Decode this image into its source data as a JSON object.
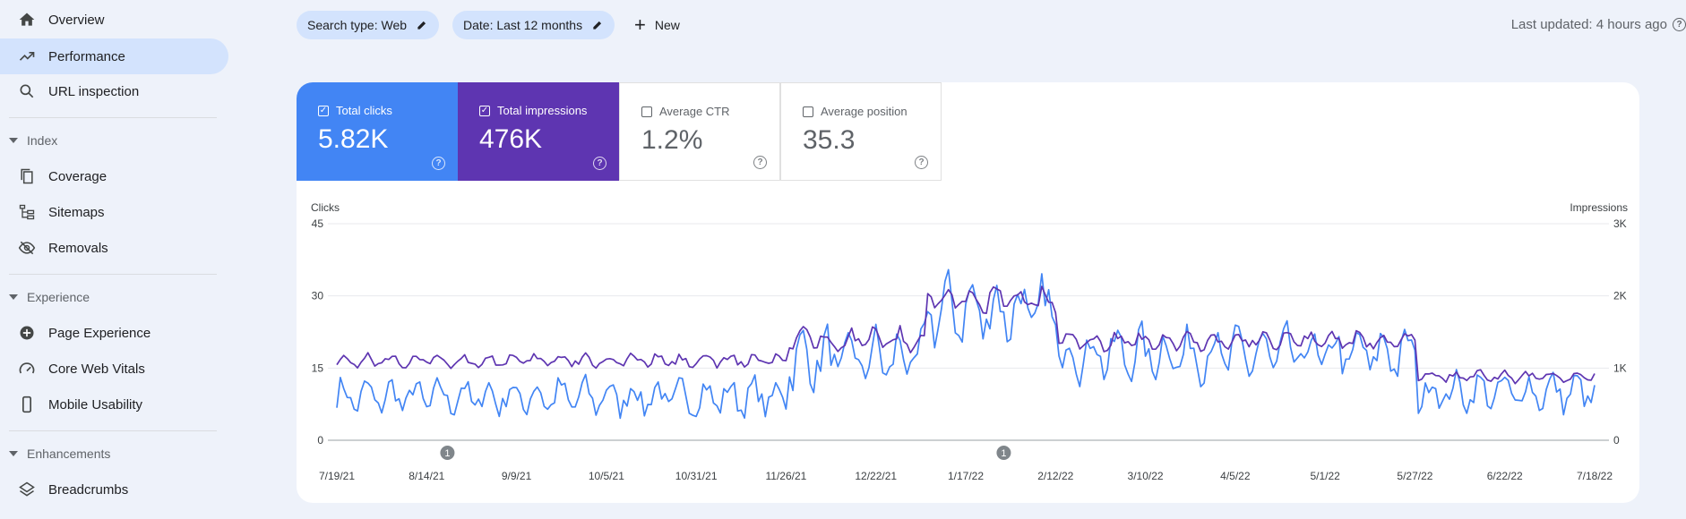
{
  "sidebar": {
    "items": [
      {
        "label": "Overview",
        "icon": "home-icon"
      },
      {
        "label": "Performance",
        "icon": "trending-up-icon",
        "active": true
      },
      {
        "label": "URL inspection",
        "icon": "search-icon"
      }
    ],
    "sections": [
      {
        "title": "Index",
        "items": [
          {
            "label": "Coverage",
            "icon": "file-copy-icon"
          },
          {
            "label": "Sitemaps",
            "icon": "sitemap-icon"
          },
          {
            "label": "Removals",
            "icon": "eye-off-icon"
          }
        ]
      },
      {
        "title": "Experience",
        "items": [
          {
            "label": "Page Experience",
            "icon": "plus-circle-icon"
          },
          {
            "label": "Core Web Vitals",
            "icon": "speed-icon"
          },
          {
            "label": "Mobile Usability",
            "icon": "phone-icon"
          }
        ]
      },
      {
        "title": "Enhancements",
        "items": [
          {
            "label": "Breadcrumbs",
            "icon": "layers-icon"
          }
        ]
      }
    ]
  },
  "toolbar": {
    "chips": [
      "Search type: Web",
      "Date: Last 12 months"
    ],
    "new_label": "New",
    "last_updated": "Last updated: 4 hours ago"
  },
  "metrics": {
    "clicks": {
      "label": "Total clicks",
      "value": "5.82K",
      "checked": true
    },
    "impressions": {
      "label": "Total impressions",
      "value": "476K",
      "checked": true
    },
    "ctr": {
      "label": "Average CTR",
      "value": "1.2%",
      "checked": false
    },
    "position": {
      "label": "Average position",
      "value": "35.3",
      "checked": false
    }
  },
  "colors": {
    "clicks": "#4285f4",
    "impressions": "#5e35b1",
    "active_nav": "#d3e3fd"
  },
  "chart_data": {
    "type": "line",
    "left_axis_label": "Clicks",
    "right_axis_label": "Impressions",
    "left_ticks": [
      "45",
      "30",
      "15",
      "0"
    ],
    "right_ticks": [
      "3K",
      "2K",
      "1K",
      "0"
    ],
    "left_ylim": [
      0,
      45
    ],
    "right_ylim": [
      0,
      3000
    ],
    "x_tick_labels": [
      "7/19/21",
      "8/14/21",
      "9/9/21",
      "10/5/21",
      "10/31/21",
      "11/26/21",
      "12/22/21",
      "1/17/22",
      "2/12/22",
      "3/10/22",
      "4/5/22",
      "5/1/22",
      "5/27/22",
      "6/22/22",
      "7/18/22"
    ],
    "annotations": [
      {
        "label": "1",
        "date": "8/20/21"
      },
      {
        "label": "1",
        "date": "1/28/22"
      }
    ],
    "series": [
      {
        "name": "Total clicks",
        "axis": "left",
        "color": "#4285f4",
        "segments": [
          {
            "from": "7/19/21",
            "to": "11/26/21",
            "mean": 9,
            "amp": 5
          },
          {
            "from": "11/26/21",
            "to": "1/5/22",
            "mean": 17,
            "amp": 8
          },
          {
            "from": "1/5/22",
            "to": "2/12/22",
            "mean": 27,
            "amp": 9
          },
          {
            "from": "2/12/22",
            "to": "5/27/22",
            "mean": 18,
            "amp": 7
          },
          {
            "from": "5/27/22",
            "to": "7/18/22",
            "mean": 10,
            "amp": 5
          }
        ]
      },
      {
        "name": "Total impressions",
        "axis": "right",
        "color": "#5e35b1",
        "segments": [
          {
            "from": "7/19/21",
            "to": "11/26/21",
            "mean": 1100,
            "amp": 120
          },
          {
            "from": "11/26/21",
            "to": "1/5/22",
            "mean": 1400,
            "amp": 200
          },
          {
            "from": "1/5/22",
            "to": "2/12/22",
            "mean": 1950,
            "amp": 220
          },
          {
            "from": "2/12/22",
            "to": "5/27/22",
            "mean": 1380,
            "amp": 160
          },
          {
            "from": "5/27/22",
            "to": "7/18/22",
            "mean": 880,
            "amp": 100
          }
        ]
      }
    ]
  }
}
